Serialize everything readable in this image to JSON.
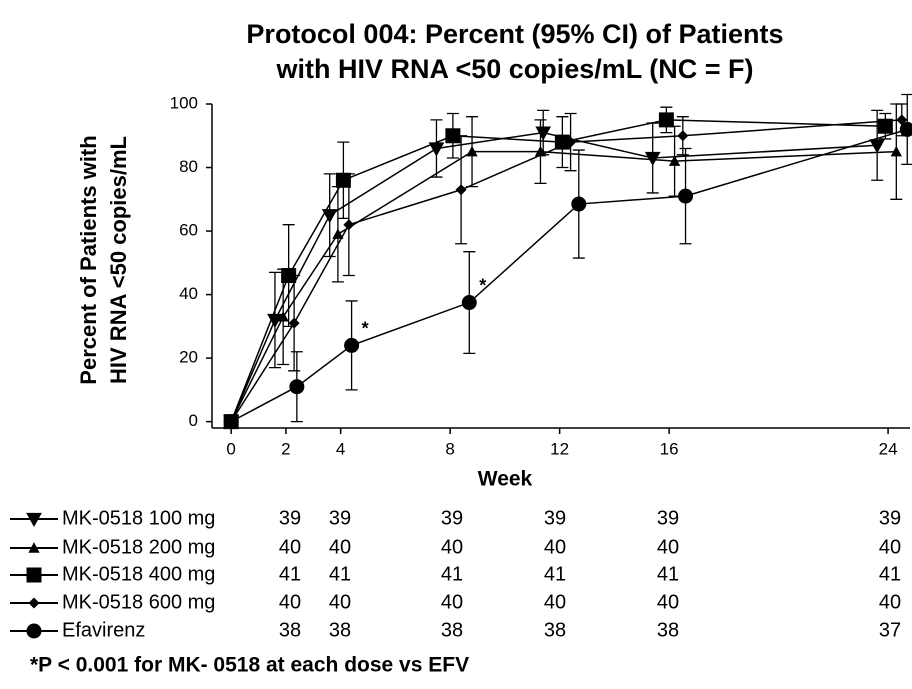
{
  "chart_data": {
    "type": "errorline",
    "title": [
      "Protocol 004: Percent (95% CI) of Patients",
      "with HIV RNA <50 copies/mL (NC = F)"
    ],
    "ylabel": [
      "Percent of Patients with",
      "HIV RNA <50 copies/mL"
    ],
    "xlabel": "Week",
    "xlim": [
      -0.7,
      24.8
    ],
    "ylim": [
      -2,
      100
    ],
    "xticks": [
      0,
      2,
      4,
      8,
      12,
      16,
      24
    ],
    "yticks": [
      0,
      20,
      40,
      60,
      80,
      100
    ],
    "grid": false,
    "series": [
      {
        "name": "MK-0518 100 mg",
        "color": "#000000",
        "marker": "triangle-down",
        "x": [
          0,
          1.6,
          3.6,
          7.5,
          11.4,
          15.4,
          23.6
        ],
        "values": [
          0,
          32,
          65,
          86,
          91,
          83,
          87
        ],
        "errors": [
          0,
          15,
          13,
          9,
          7,
          11,
          11
        ],
        "n": [
          39,
          39,
          39,
          39,
          39,
          39
        ]
      },
      {
        "name": "MK-0518 200 mg",
        "color": "#000000",
        "marker": "triangle-up",
        "x": [
          0,
          1.9,
          3.9,
          8.8,
          11.3,
          16.2,
          24.3
        ],
        "values": [
          0,
          33,
          59,
          85,
          85,
          82,
          85
        ],
        "errors": [
          0,
          15,
          15,
          11,
          10,
          11,
          15
        ],
        "n": [
          40,
          40,
          40,
          40,
          40,
          40
        ]
      },
      {
        "name": "MK-0518 400 mg",
        "color": "#000000",
        "marker": "square",
        "x": [
          0,
          2.1,
          4.1,
          8.1,
          12.1,
          15.9,
          23.9
        ],
        "values": [
          0,
          46,
          76,
          90,
          88,
          95,
          93
        ],
        "errors": [
          0,
          16,
          12,
          7,
          8,
          4,
          4
        ],
        "n": [
          41,
          41,
          41,
          41,
          41,
          41
        ]
      },
      {
        "name": "MK-0518 600 mg",
        "color": "#000000",
        "marker": "diamond",
        "x": [
          0,
          2.3,
          4.3,
          8.4,
          12.4,
          16.5,
          24.5
        ],
        "values": [
          0,
          31,
          62,
          73,
          88,
          90,
          95
        ],
        "errors": [
          0,
          15,
          16,
          17,
          9,
          6,
          5
        ],
        "n": [
          40,
          40,
          40,
          40,
          40,
          40
        ]
      },
      {
        "name": "Efavirenz",
        "color": "#000000",
        "marker": "circle",
        "x": [
          0,
          2.4,
          4.4,
          8.7,
          12.7,
          16.6,
          24.7
        ],
        "values": [
          0,
          11,
          24,
          37.5,
          68.5,
          71,
          92
        ],
        "errors": [
          0,
          11,
          14,
          16,
          17,
          15,
          11
        ],
        "n": [
          38,
          38,
          38,
          38,
          38,
          37
        ]
      }
    ],
    "annotations": [
      "*",
      "*"
    ],
    "footnote": "*P < 0.001 for MK- 0518 at each dose vs EFV"
  }
}
